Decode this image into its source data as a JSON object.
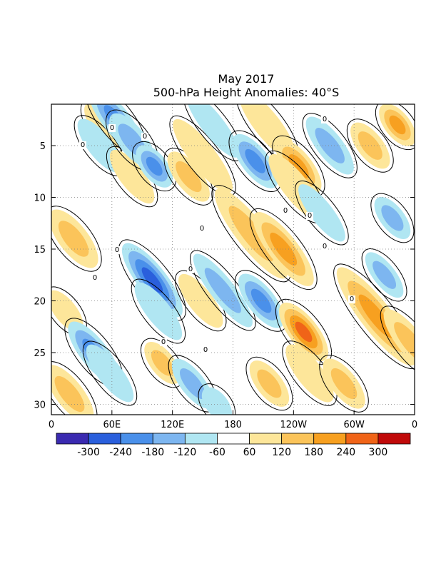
{
  "title": {
    "line1": "May 2017",
    "line2": "500-hPa Height Anomalies: 40°S"
  },
  "chart_data": {
    "type": "heatmap",
    "title": "May 2017 500-hPa Height Anomalies: 40°S",
    "x_ticks": [
      "0",
      "60E",
      "120E",
      "180",
      "120W",
      "60W",
      "0"
    ],
    "y_ticks": [
      "5",
      "10",
      "15",
      "20",
      "25",
      "30"
    ],
    "y_tick_values": [
      5,
      10,
      15,
      20,
      25,
      30
    ],
    "ylim": [
      31,
      1
    ],
    "xlim_deg": [
      0,
      360
    ],
    "colorbar": {
      "levels": [
        "-300",
        "-240",
        "-180",
        "-120",
        "-60",
        "60",
        "120",
        "180",
        "240",
        "300"
      ],
      "colors": [
        "#3a2ab0",
        "#2a5fdc",
        "#4a90ea",
        "#7db6f0",
        "#b0e6f2",
        "#ffffff",
        "#fde69a",
        "#fbc45a",
        "#f7a020",
        "#f06418",
        "#c00a0a"
      ]
    },
    "contour_labels": [
      "0",
      "0",
      "0",
      "0",
      "0",
      "0",
      "0",
      "0",
      "0",
      "0",
      "0",
      "0",
      "0",
      "0"
    ],
    "bands": [
      {
        "level": 1,
        "x_deg": 52,
        "day": 3.0,
        "len": 4.5,
        "width": 0.95
      },
      {
        "level": -1,
        "x_deg": 48,
        "day": 5.0,
        "len": 5.5,
        "width": 0.9
      },
      {
        "level": 1,
        "x_deg": 80,
        "day": 8.0,
        "len": 5.5,
        "width": 0.9
      },
      {
        "level": -3,
        "x_deg": 64,
        "day": 2.5,
        "len": 7.0,
        "width": 1.1
      },
      {
        "level": -2,
        "x_deg": 80,
        "day": 4.5,
        "len": 5.5,
        "width": 1.1
      },
      {
        "level": -3,
        "x_deg": 102,
        "day": 7.0,
        "len": 4.0,
        "width": 1.0
      },
      {
        "level": 2,
        "x_deg": 136,
        "day": 8.0,
        "len": 5.0,
        "width": 1.0
      },
      {
        "level": 1,
        "x_deg": 150,
        "day": 6.0,
        "len": 8.0,
        "width": 1.0
      },
      {
        "level": -1,
        "x_deg": 160,
        "day": 3.0,
        "len": 7.0,
        "width": 0.8
      },
      {
        "level": -3,
        "x_deg": 202,
        "day": 6.5,
        "len": 5.5,
        "width": 1.1
      },
      {
        "level": 1,
        "x_deg": 214,
        "day": 3.0,
        "len": 7.5,
        "width": 1.0
      },
      {
        "level": 3,
        "x_deg": 245,
        "day": 7.0,
        "len": 5.5,
        "width": 1.1
      },
      {
        "level": 1,
        "x_deg": 242,
        "day": 9.0,
        "len": 7.0,
        "width": 1.0
      },
      {
        "level": -2,
        "x_deg": 276,
        "day": 5.0,
        "len": 6.0,
        "width": 1.0
      },
      {
        "level": 2,
        "x_deg": 316,
        "day": 5.0,
        "len": 4.5,
        "width": 1.0
      },
      {
        "level": 3,
        "x_deg": 343,
        "day": 3.0,
        "len": 4.0,
        "width": 1.0
      },
      {
        "level": -2,
        "x_deg": 338,
        "day": 12.0,
        "len": 4.0,
        "width": 0.9
      },
      {
        "level": 2,
        "x_deg": 22,
        "day": 14.0,
        "len": 6.0,
        "width": 1.2
      },
      {
        "level": 1,
        "x_deg": 14,
        "day": 21.0,
        "len": 4.0,
        "width": 0.8
      },
      {
        "level": -4,
        "x_deg": 100,
        "day": 18.0,
        "len": 8.0,
        "width": 1.2
      },
      {
        "level": -1,
        "x_deg": 106,
        "day": 21.0,
        "len": 6.0,
        "width": 0.9
      },
      {
        "level": 1,
        "x_deg": 148,
        "day": 20.0,
        "len": 5.5,
        "width": 0.9
      },
      {
        "level": -2,
        "x_deg": 170,
        "day": 19.0,
        "len": 8.0,
        "width": 0.9
      },
      {
        "level": -3,
        "x_deg": 208,
        "day": 20.0,
        "len": 5.5,
        "width": 1.1
      },
      {
        "level": 2,
        "x_deg": 198,
        "day": 13.5,
        "len": 10.0,
        "width": 1.2
      },
      {
        "level": 3,
        "x_deg": 230,
        "day": 15.0,
        "len": 8.0,
        "width": 1.2
      },
      {
        "level": 4,
        "x_deg": 250,
        "day": 23.0,
        "len": 6.0,
        "width": 1.2
      },
      {
        "level": 1,
        "x_deg": 256,
        "day": 27.0,
        "len": 6.0,
        "width": 1.0
      },
      {
        "level": -1,
        "x_deg": 268,
        "day": 11.5,
        "len": 6.0,
        "width": 0.8
      },
      {
        "level": -2,
        "x_deg": 330,
        "day": 17.5,
        "len": 4.5,
        "width": 0.8
      },
      {
        "level": 3,
        "x_deg": 322,
        "day": 21.5,
        "len": 11.0,
        "width": 1.3
      },
      {
        "level": 2,
        "x_deg": 356,
        "day": 24.0,
        "len": 7.0,
        "width": 1.0
      },
      {
        "level": -3,
        "x_deg": 42,
        "day": 25.0,
        "len": 6.5,
        "width": 1.1
      },
      {
        "level": -1,
        "x_deg": 58,
        "day": 27.0,
        "len": 6.0,
        "width": 0.9
      },
      {
        "level": 2,
        "x_deg": 18,
        "day": 29.0,
        "len": 6.0,
        "width": 1.1
      },
      {
        "level": 2,
        "x_deg": 110,
        "day": 26.0,
        "len": 4.0,
        "width": 0.9
      },
      {
        "level": -2,
        "x_deg": 140,
        "day": 28.0,
        "len": 5.0,
        "width": 0.9
      },
      {
        "level": 2,
        "x_deg": 216,
        "day": 28.0,
        "len": 4.5,
        "width": 1.0
      },
      {
        "level": 2,
        "x_deg": 290,
        "day": 28.0,
        "len": 5.0,
        "width": 1.0
      },
      {
        "level": -1,
        "x_deg": 164,
        "day": 30.0,
        "len": 3.0,
        "width": 0.8
      }
    ]
  }
}
